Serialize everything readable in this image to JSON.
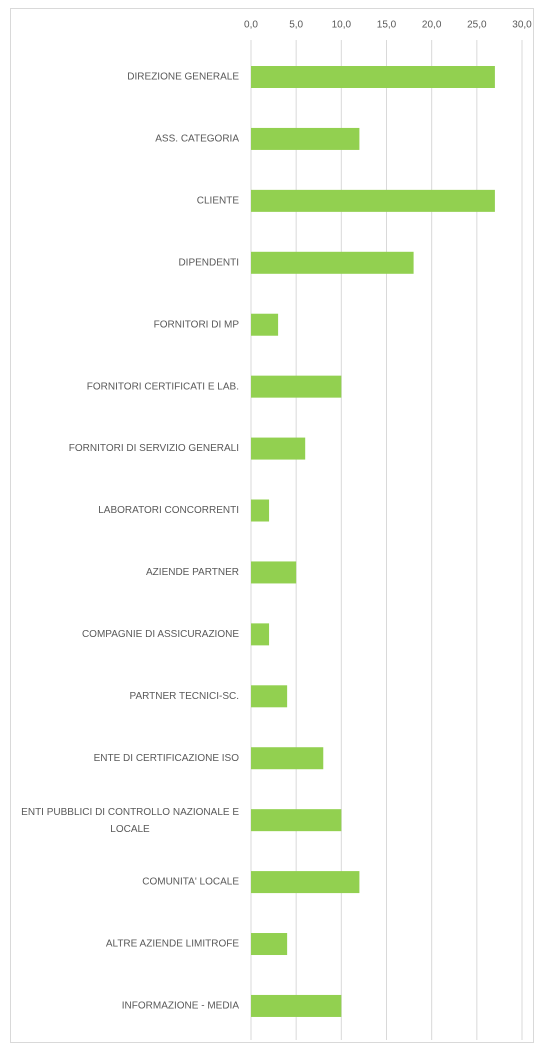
{
  "chart_data": {
    "type": "bar",
    "orientation": "horizontal",
    "categories": [
      "DIREZIONE GENERALE",
      "ASS. CATEGORIA",
      "CLIENTE",
      "DIPENDENTI",
      "FORNITORI DI MP",
      "FORNITORI CERTIFICATI E LAB.",
      "FORNITORI DI SERVIZIO GENERALI",
      "LABORATORI CONCORRENTI",
      "AZIENDE PARTNER",
      "COMPAGNIE DI ASSICURAZIONE",
      "PARTNER TECNICI-SC.",
      "ENTE DI CERTIFICAZIONE ISO",
      "ENTI PUBBLICI DI CONTROLLO NAZIONALE E LOCALE",
      "COMUNITA' LOCALE",
      "ALTRE AZIENDE LIMITROFE",
      "INFORMAZIONE - MEDIA"
    ],
    "values": [
      27,
      12,
      27,
      18,
      3,
      10,
      6,
      2,
      5,
      2,
      4,
      8,
      10,
      12,
      4,
      10
    ],
    "color": "#92d050",
    "xlim": [
      0,
      30
    ],
    "xticks": [
      {
        "value": 0,
        "label": "0,0"
      },
      {
        "value": 5,
        "label": "5,0"
      },
      {
        "value": 10,
        "label": "10,0"
      },
      {
        "value": 15,
        "label": "15,0"
      },
      {
        "value": 20,
        "label": "20,0"
      },
      {
        "value": 25,
        "label": "25,0"
      },
      {
        "value": 30,
        "label": "30,0"
      }
    ],
    "grid": true
  }
}
